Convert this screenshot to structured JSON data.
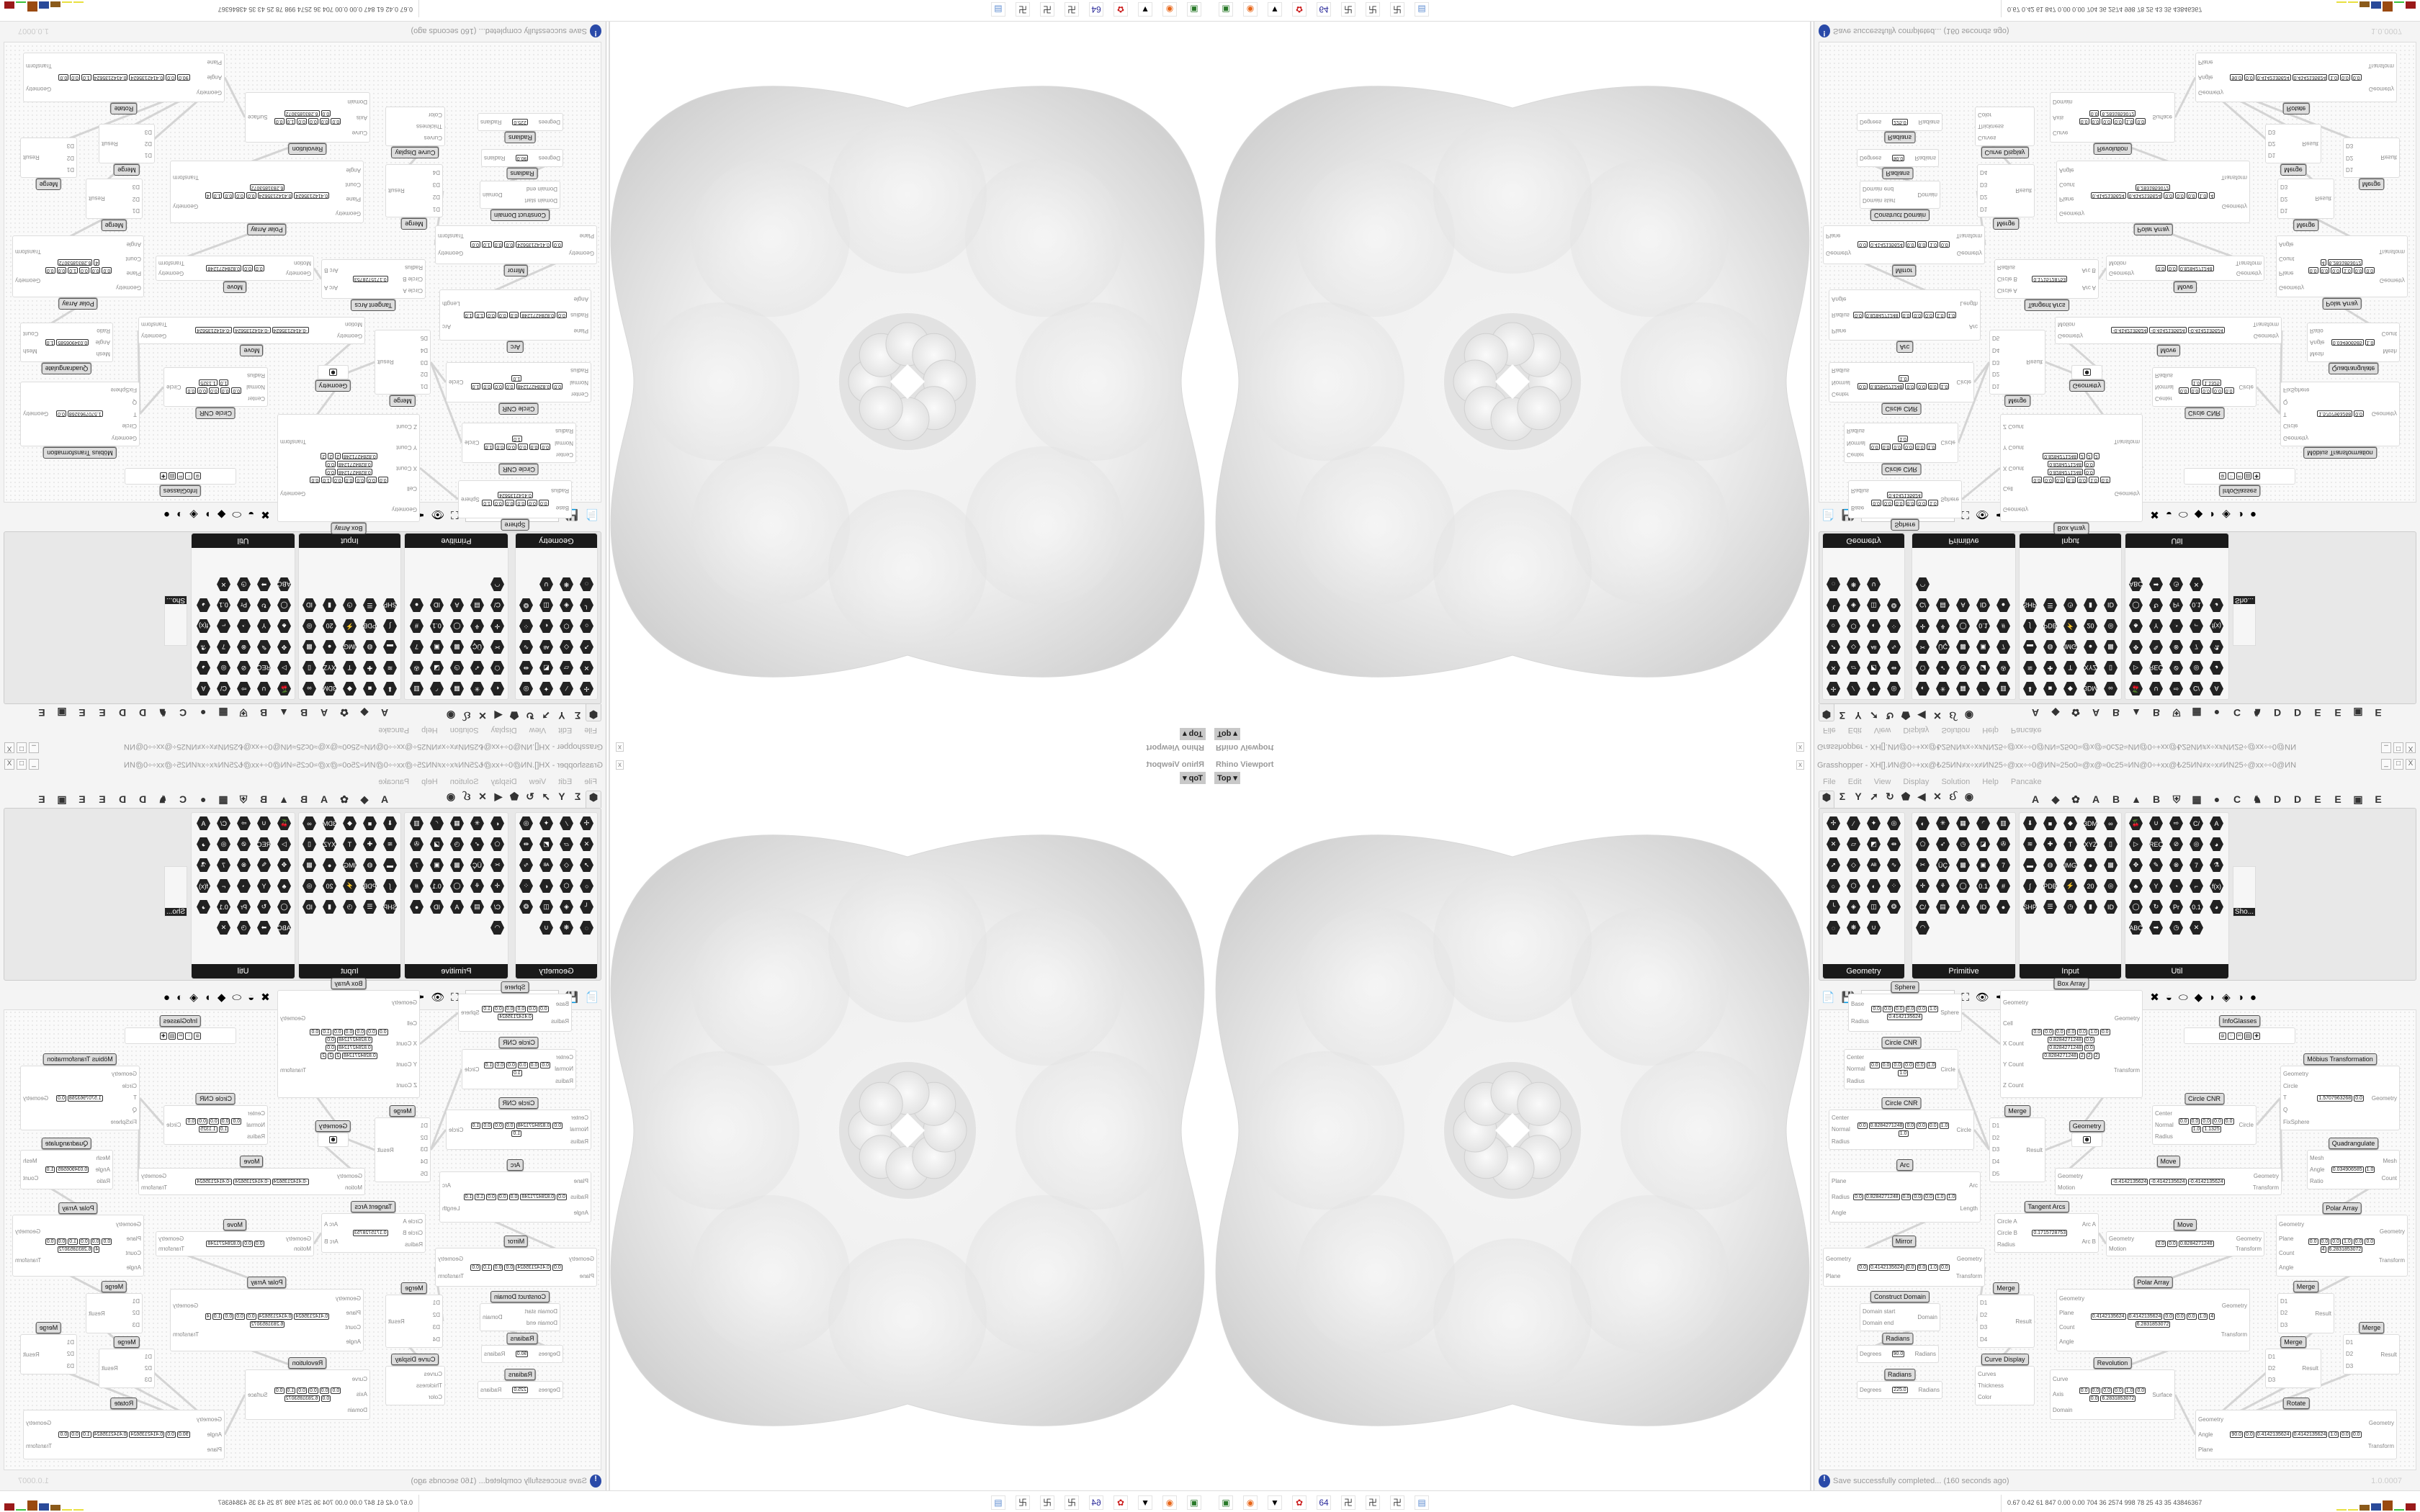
{
  "viewport": {
    "title": "Rhino Viewport",
    "view": "Top ▾",
    "close": "x"
  },
  "grasshopper": {
    "title": "Grasshopper - XH[].ИN@0÷+xx@₺25ИN≠x÷x≠ИN25÷@xx÷÷0@ИN≈25o0≈@x@≈0c25≈ИN@0÷+xx@₺25ИN≠x÷x≠ИN25÷@xx÷÷0@ИN",
    "window_buttons": [
      "_",
      "□",
      "X"
    ],
    "menu": [
      "File",
      "Edit",
      "View",
      "Display",
      "Solution",
      "Help",
      "Pancake"
    ],
    "tab_icons": [
      "⬢",
      "Σ",
      "Y",
      "➚",
      "↻",
      "⬟",
      "◀",
      "✕",
      "ઈ",
      "◉"
    ],
    "tab_letters": [
      "A",
      "◆",
      "✿",
      "A",
      "B",
      "▲",
      "B",
      "⛨",
      "▦",
      "●",
      "C",
      "♞",
      "D",
      "D",
      "E",
      "E",
      "▣",
      "E"
    ],
    "panels": [
      {
        "name": "Geometry",
        "icons": [
          "✢",
          "⁄",
          "✦",
          "◎",
          "✕",
          "▱",
          "◩",
          "⇹",
          "➚",
          "◇",
          "ᴬᴮ",
          "∿",
          "○",
          "⬡",
          "◐",
          "⁘",
          "╰",
          "◈",
          "◫",
          "❂",
          "◌",
          "❋",
          "∪"
        ]
      },
      {
        "name": "Primitive",
        "icons": [
          "◐",
          "✳",
          "▦",
          "◜",
          "▥",
          "⬠",
          "➶",
          "◷",
          "◪",
          "✇",
          "✂",
          "ÜÇ",
          "▩",
          "▣",
          "7",
          "✛",
          "⚘",
          "◯",
          "0.1",
          "#",
          "C/",
          "▤",
          "A",
          "ID",
          "●",
          "◠"
        ]
      },
      {
        "name": "Input",
        "icons": [
          "⬇",
          "■",
          "◆",
          "3DM",
          "∞",
          "≋",
          "✚",
          "T",
          "XYZ",
          "▯",
          "▬",
          "◍",
          "IMG",
          "●",
          "▩",
          "∫",
          "PDB",
          "⚡",
          "20",
          "◎",
          "SHP",
          "☰",
          "◷",
          "▮",
          "ID"
        ]
      },
      {
        "name": "Util",
        "icons": [
          "🍒",
          "∪",
          "⇨",
          "C/",
          "A",
          "▷",
          "REC",
          "⊘",
          "◎",
          "◕",
          "✥",
          "✎",
          "⊗",
          "7",
          "⚗",
          "♣",
          "Y",
          "◔",
          "⌐",
          "f(x)",
          "◯",
          "↻",
          "Pr",
          "0.1",
          "◕",
          "ABC",
          "➡",
          "◷",
          "✕"
        ]
      }
    ],
    "shortcut_label": "Sho...",
    "toolbar": {
      "zoom": "88%",
      "icons": [
        "📄",
        "💾",
        "⛶",
        "👁",
        "✒",
        "⊓",
        "@",
        "GHA",
        "▧",
        "🔍",
        "❓",
        "💡",
        "✖",
        "◒",
        "⬭",
        "◆",
        "◗",
        "◈",
        "◑",
        "●"
      ]
    },
    "nodes": [
      {
        "title": "Sphere",
        "inputs": [
          "Base",
          "Radius"
        ],
        "outputs": [
          "Sphere"
        ],
        "values": [
          "0.0",
          "0.0",
          "0.0",
          "0.0",
          "0.0",
          "1.0",
          "0.4142135624"
        ]
      },
      {
        "title": "Box Array",
        "inputs": [
          "Geometry",
          "Cell",
          "X Count",
          "Y Count",
          "Z Count"
        ],
        "outputs": [
          "Geometry",
          "Transform"
        ],
        "values": [
          "0.0",
          "0.0",
          "0.0",
          "0.0",
          "0.0",
          "1.0",
          "0.0",
          "0.8284271248",
          "0.0",
          "0.8284271248",
          "0.0",
          "0.8284271248",
          "2",
          "2",
          "2"
        ]
      },
      {
        "title": "InfoGlasses",
        "inputs": [],
        "outputs": [],
        "values": [
          "⊜",
          "⁘",
          "∞",
          "▤",
          "✚"
        ]
      },
      {
        "title": "Circle CNR",
        "inputs": [
          "Center",
          "Normal",
          "Radius"
        ],
        "outputs": [
          "Circle"
        ],
        "values": [
          "0.0",
          "0.0",
          "0.0",
          "0.0",
          "0.0",
          "1.0",
          "1.0"
        ]
      },
      {
        "title": "Circle CNR",
        "inputs": [
          "Center",
          "Normal",
          "Radius"
        ],
        "outputs": [
          "Circle"
        ],
        "values": [
          "0.0",
          "0.8284271248",
          "0.0",
          "0.0",
          "0.0",
          "1.0",
          "1.0"
        ]
      },
      {
        "title": "Möbius Transformation",
        "inputs": [
          "Geometry",
          "Circle",
          "T",
          "Q",
          "FixSphere"
        ],
        "outputs": [
          "Geometry"
        ],
        "values": [
          "1.5707963268",
          "0.0"
        ]
      },
      {
        "title": "Circle CNR",
        "inputs": [
          "Center",
          "Normal",
          "Radius"
        ],
        "outputs": [
          "Circle"
        ],
        "values": [
          "0.0",
          "0.0",
          "0.0",
          "0.0",
          "0.0",
          "1.0",
          "1.1325"
        ]
      },
      {
        "title": "Merge",
        "inputs": [
          "D1",
          "D2",
          "D3",
          "D4",
          "D5"
        ],
        "outputs": [
          "Result"
        ],
        "values": []
      },
      {
        "title": "Geometry",
        "inputs": [],
        "outputs": [],
        "values": [
          "⬢"
        ]
      },
      {
        "title": "Quadrangulate",
        "inputs": [
          "Mesh",
          "Angle",
          "Ratio"
        ],
        "outputs": [
          "Mesh",
          "Count"
        ],
        "values": [
          "0.034906585",
          "1.0"
        ]
      },
      {
        "title": "Move",
        "inputs": [
          "Geometry",
          "Motion"
        ],
        "outputs": [
          "Geometry",
          "Transform"
        ],
        "values": [
          "-0.4142135624",
          "-0.4142135624",
          "-0.4142135624"
        ]
      },
      {
        "title": "Arc",
        "inputs": [
          "Plane",
          "Radius",
          "Angle"
        ],
        "outputs": [
          "Arc",
          "Length"
        ],
        "values": [
          "0.0",
          "0.8284271248",
          "0.0",
          "0.0",
          "0.0",
          "1.0",
          "1.0"
        ]
      },
      {
        "title": "Tangent Arcs",
        "inputs": [
          "Circle A",
          "Circle B",
          "Radius"
        ],
        "outputs": [
          "Arc A",
          "Arc B"
        ],
        "values": [
          "0.1715728753"
        ]
      },
      {
        "title": "Move",
        "inputs": [
          "Geometry",
          "Motion"
        ],
        "outputs": [
          "Geometry",
          "Transform"
        ],
        "values": [
          "0.0",
          "0.0",
          "0.8284271248"
        ]
      },
      {
        "title": "Polar Array",
        "inputs": [
          "Geometry",
          "Plane",
          "Count",
          "Angle"
        ],
        "outputs": [
          "Geometry",
          "Transform"
        ],
        "values": [
          "0.0",
          "0.0",
          "0.0",
          "1.0",
          "0.0",
          "0.0",
          "4",
          "6.2831853072"
        ]
      },
      {
        "title": "Mirror",
        "inputs": [
          "Geometry",
          "Plane"
        ],
        "outputs": [
          "Geometry",
          "Transform"
        ],
        "values": [
          "0.0",
          "0.4142135624",
          "0.0",
          "0.0",
          "1.0",
          "0.0"
        ]
      },
      {
        "title": "Construct Domain",
        "inputs": [
          "Domain start",
          "Domain end"
        ],
        "outputs": [
          "Domain"
        ],
        "values": []
      },
      {
        "title": "Radians",
        "inputs": [
          "Degrees"
        ],
        "outputs": [
          "Radians"
        ],
        "values": [
          "90.0"
        ]
      },
      {
        "title": "Radians",
        "inputs": [
          "Degrees"
        ],
        "outputs": [
          "Radians"
        ],
        "values": [
          "225.0"
        ]
      },
      {
        "title": "Merge",
        "inputs": [
          "D1",
          "D2",
          "D3",
          "D4"
        ],
        "outputs": [
          "Result"
        ],
        "values": []
      },
      {
        "title": "Curve Display",
        "inputs": [
          "Curves",
          "Thickness",
          "Color"
        ],
        "outputs": [],
        "values": []
      },
      {
        "title": "Polar Array",
        "inputs": [
          "Geometry",
          "Plane",
          "Count",
          "Angle"
        ],
        "outputs": [
          "Geometry",
          "Transform"
        ],
        "values": [
          "0.4142135624",
          "0.4142135624",
          "0.0",
          "0.0",
          "0.0",
          "1.0",
          "4",
          "6.2831853072"
        ]
      },
      {
        "title": "Revolution",
        "inputs": [
          "Curve",
          "Axis",
          "Domain"
        ],
        "outputs": [
          "Surface"
        ],
        "values": [
          "0.0",
          "0.0",
          "0.0",
          "0.0",
          "1.0",
          "0.0",
          "0.0",
          "6.2831853072"
        ]
      },
      {
        "title": "Merge",
        "inputs": [
          "D1",
          "D2",
          "D3"
        ],
        "outputs": [
          "Result"
        ],
        "values": []
      },
      {
        "title": "Merge",
        "inputs": [
          "D1",
          "D2",
          "D3"
        ],
        "outputs": [
          "Result"
        ],
        "values": []
      },
      {
        "title": "Merge",
        "inputs": [
          "D1",
          "D2",
          "D3"
        ],
        "outputs": [
          "Result"
        ],
        "values": []
      },
      {
        "title": "Rotate",
        "inputs": [
          "Geometry",
          "Angle",
          "Plane"
        ],
        "outputs": [
          "Geometry",
          "Transform"
        ],
        "values": [
          "90.0",
          "0.0",
          "0.4142135624",
          "0.4142135624",
          "1.0",
          "0.0",
          "0.0"
        ]
      }
    ],
    "status": {
      "icon": "!",
      "message": "Save successfully completed... (160 seconds ago)",
      "version": "1.0.0007"
    }
  },
  "taskbar": {
    "apps": [
      {
        "name": "screen-monitor",
        "glyph": "▣",
        "color": "#2a7a2a"
      },
      {
        "name": "firefox",
        "glyph": "◉",
        "color": "#e8671a"
      },
      {
        "name": "inkscape",
        "glyph": "▼",
        "color": "#000000"
      },
      {
        "name": "red-gear",
        "glyph": "✿",
        "color": "#cc1f1f"
      },
      {
        "name": "floppy-64",
        "glyph": "64",
        "color": "#2a2a9a"
      },
      {
        "name": "grid-app",
        "glyph": "卍",
        "color": "#333333"
      },
      {
        "name": "grid-app",
        "glyph": "卍",
        "color": "#333333"
      },
      {
        "name": "grid-app",
        "glyph": "卍",
        "color": "#333333"
      },
      {
        "name": "calculator",
        "glyph": "▤",
        "color": "#5a8ad0"
      }
    ],
    "stats": "0.67 0.42  61  847 0.00 0.00  704  36  2574 998  78  25  43  35  43846367"
  }
}
